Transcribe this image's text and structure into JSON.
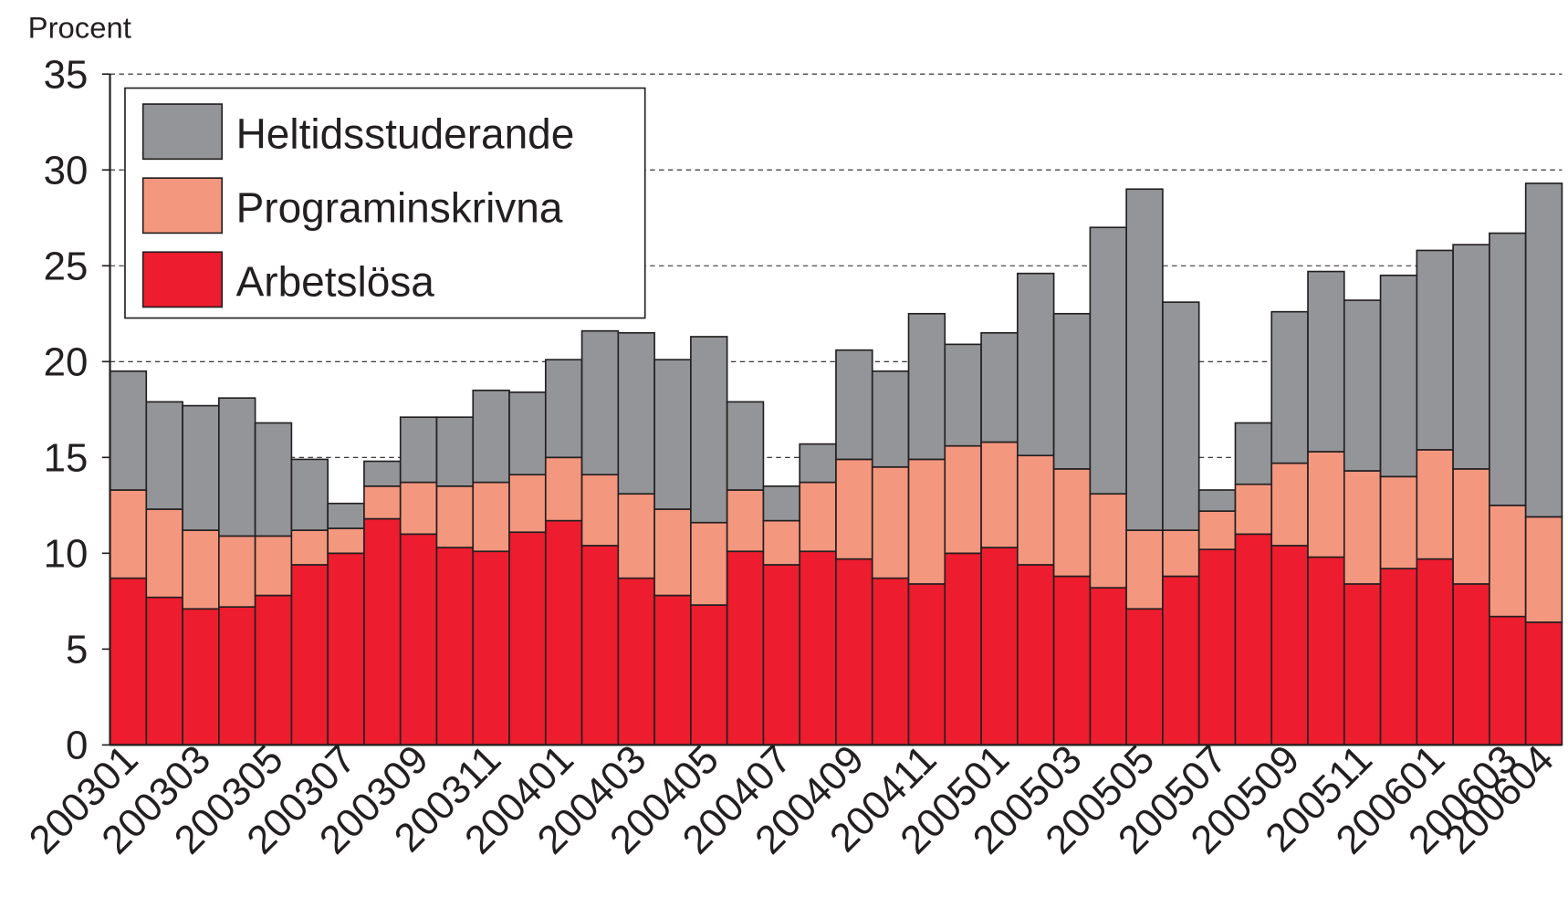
{
  "chart_data": {
    "type": "stacked_bar",
    "ylabel": "Procent",
    "categories": [
      "200301",
      null,
      "200303",
      null,
      "200305",
      null,
      "200307",
      null,
      "200309",
      null,
      "200311",
      null,
      "200401",
      null,
      "200403",
      null,
      "200405",
      null,
      "200407",
      null,
      "200409",
      null,
      "200411",
      null,
      "200501",
      null,
      "200503",
      null,
      "200505",
      null,
      "200507",
      null,
      "200509",
      null,
      "200511",
      null,
      "200601",
      null,
      "200603",
      "200604"
    ],
    "series": [
      {
        "name": "Arbetslösa",
        "color": "#ed1c2e",
        "values": [
          8.7,
          7.7,
          7.1,
          7.2,
          7.8,
          9.4,
          10.0,
          11.8,
          11.0,
          10.3,
          10.1,
          11.1,
          11.7,
          10.4,
          8.7,
          7.8,
          7.3,
          10.1,
          9.4,
          10.1,
          9.7,
          8.7,
          8.4,
          10.0,
          10.3,
          9.4,
          8.8,
          8.2,
          7.1,
          8.8,
          10.2,
          11.0,
          10.4,
          9.8,
          8.4,
          9.2,
          9.7,
          8.4,
          6.7,
          6.4
        ]
      },
      {
        "name": "Programinskrivna",
        "color": "#f4977f",
        "values": [
          4.6,
          4.6,
          4.1,
          3.7,
          3.1,
          1.8,
          1.3,
          1.7,
          2.7,
          3.2,
          3.6,
          3.0,
          3.3,
          3.7,
          4.4,
          4.5,
          4.3,
          3.2,
          2.3,
          3.6,
          5.2,
          5.8,
          6.5,
          5.6,
          5.5,
          5.7,
          5.6,
          4.9,
          4.1,
          2.4,
          2.0,
          2.6,
          4.3,
          5.5,
          5.9,
          4.8,
          5.7,
          6.0,
          5.8,
          5.5
        ]
      },
      {
        "name": "Heltidsstuderande",
        "color": "#939598",
        "values": [
          6.2,
          5.6,
          6.5,
          7.2,
          5.9,
          3.7,
          1.3,
          1.3,
          3.4,
          3.6,
          4.8,
          4.3,
          5.1,
          7.5,
          8.4,
          7.8,
          9.7,
          4.6,
          1.8,
          2.0,
          5.7,
          5.0,
          7.6,
          5.3,
          5.7,
          9.5,
          8.1,
          13.9,
          17.8,
          11.9,
          1.1,
          3.2,
          7.9,
          9.4,
          8.9,
          10.5,
          10.4,
          11.7,
          14.2,
          17.4
        ]
      }
    ],
    "ylim": [
      0,
      35
    ],
    "yticks": [
      0,
      5,
      10,
      15,
      20,
      25,
      30,
      35
    ],
    "grid": true,
    "legend": "upper left"
  }
}
